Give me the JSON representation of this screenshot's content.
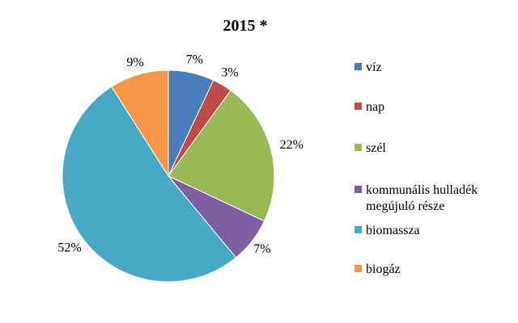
{
  "chart_data": {
    "type": "pie",
    "title": "2015  *",
    "legend_position": "right",
    "categories": [
      "víz",
      "nap",
      "szél",
      "kommunális hulladék megújuló része",
      "biomassza",
      "biogáz"
    ],
    "legend_lines": [
      [
        "víz"
      ],
      [
        "nap"
      ],
      [
        "szél"
      ],
      [
        "kommunális hulladék",
        "megújuló része"
      ],
      [
        "biomassza"
      ],
      [
        "biogáz"
      ]
    ],
    "values": [
      7,
      3,
      22,
      7,
      52,
      9
    ],
    "labels": [
      "7%",
      "3%",
      "22%",
      "7%",
      "52%",
      "9%"
    ],
    "colors": [
      "#4A7EBB",
      "#BE4B48",
      "#98B954",
      "#7D60A0",
      "#46AAC5",
      "#F79646"
    ]
  }
}
